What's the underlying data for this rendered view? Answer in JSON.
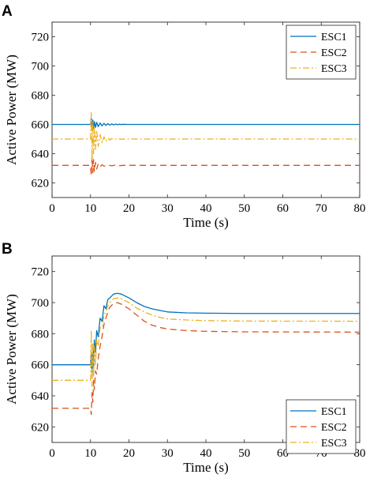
{
  "chart_data": [
    {
      "type": "line",
      "panel_label": "A",
      "xlabel": "Time (s)",
      "ylabel": "Active Power (MW)",
      "xlim": [
        0,
        80
      ],
      "ylim": [
        610,
        730
      ],
      "xticks": [
        0,
        10,
        20,
        30,
        40,
        50,
        60,
        70,
        80
      ],
      "yticks": [
        620,
        640,
        660,
        680,
        700,
        720
      ],
      "grid": false,
      "legend_position": "top-right",
      "series": [
        {
          "name": "ESC1",
          "color": "#0072BD",
          "dash": "solid",
          "points": [
            [
              0,
              660
            ],
            [
              10,
              660
            ],
            [
              10.2,
              664
            ],
            [
              10.4,
              656
            ],
            [
              10.6,
              663
            ],
            [
              10.8,
              657
            ],
            [
              11.0,
              662
            ],
            [
              11.3,
              658
            ],
            [
              11.6,
              661.5
            ],
            [
              12.0,
              658.5
            ],
            [
              12.5,
              661
            ],
            [
              13.0,
              659
            ],
            [
              13.5,
              660.8
            ],
            [
              14.0,
              659.3
            ],
            [
              14.5,
              660.6
            ],
            [
              15.0,
              659.5
            ],
            [
              15.5,
              660.4
            ],
            [
              16.0,
              659.7
            ],
            [
              16.5,
              660.3
            ],
            [
              17.0,
              659.8
            ],
            [
              17.5,
              660.2
            ],
            [
              18.0,
              659.9
            ],
            [
              18.5,
              660.1
            ],
            [
              19.5,
              660
            ],
            [
              80,
              660
            ]
          ]
        },
        {
          "name": "ESC2",
          "color": "#D95319",
          "dash": "8,5",
          "points": [
            [
              0,
              632
            ],
            [
              10,
              632
            ],
            [
              10.2,
              625
            ],
            [
              10.4,
              638
            ],
            [
              10.6,
              627
            ],
            [
              10.8,
              636
            ],
            [
              11.0,
              628
            ],
            [
              11.3,
              634
            ],
            [
              11.6,
              629.5
            ],
            [
              12.0,
              633
            ],
            [
              12.5,
              631
            ],
            [
              13.0,
              632.5
            ],
            [
              13.5,
              631.5
            ],
            [
              14.5,
              632.3
            ],
            [
              15.5,
              631.7
            ],
            [
              16.5,
              632.2
            ],
            [
              17.5,
              631.8
            ],
            [
              18.5,
              632
            ],
            [
              80,
              632
            ]
          ]
        },
        {
          "name": "ESC3",
          "color": "#EDB120",
          "dash": "8,3,2,3",
          "points": [
            [
              0,
              650
            ],
            [
              10,
              650
            ],
            [
              10.2,
              668
            ],
            [
              10.4,
              636
            ],
            [
              10.6,
              662
            ],
            [
              10.8,
              640
            ],
            [
              11.0,
              659
            ],
            [
              11.3,
              643
            ],
            [
              11.6,
              656
            ],
            [
              12.0,
              645
            ],
            [
              12.5,
              653
            ],
            [
              13.0,
              647.5
            ],
            [
              13.5,
              651.5
            ],
            [
              14.0,
              648.5
            ],
            [
              14.5,
              650.8
            ],
            [
              15.0,
              649.3
            ],
            [
              15.5,
              650.4
            ],
            [
              16.0,
              649.7
            ],
            [
              17.0,
              650.2
            ],
            [
              18.0,
              649.9
            ],
            [
              19.0,
              650
            ],
            [
              80,
              650
            ]
          ]
        }
      ]
    },
    {
      "type": "line",
      "panel_label": "B",
      "xlabel": "Time (s)",
      "ylabel": "Active Power (MW)",
      "xlim": [
        0,
        80
      ],
      "ylim": [
        610,
        730
      ],
      "xticks": [
        0,
        10,
        20,
        30,
        40,
        50,
        60,
        70,
        80
      ],
      "yticks": [
        620,
        640,
        660,
        680,
        700,
        720
      ],
      "grid": false,
      "legend_position": "bottom-right",
      "series": [
        {
          "name": "ESC1",
          "color": "#0072BD",
          "dash": "solid",
          "points": [
            [
              0,
              660
            ],
            [
              10,
              660
            ],
            [
              10.2,
              668
            ],
            [
              10.4,
              652
            ],
            [
              10.6,
              670
            ],
            [
              10.8,
              658
            ],
            [
              11,
              676
            ],
            [
              11.3,
              668
            ],
            [
              11.6,
              682
            ],
            [
              12,
              678
            ],
            [
              12.5,
              690
            ],
            [
              13,
              688
            ],
            [
              13.5,
              698
            ],
            [
              14,
              696
            ],
            [
              14.5,
              702
            ],
            [
              15,
              703
            ],
            [
              16,
              705.5
            ],
            [
              17,
              706
            ],
            [
              18,
              705.5
            ],
            [
              20,
              703
            ],
            [
              22,
              700
            ],
            [
              24,
              697.5
            ],
            [
              26,
              696
            ],
            [
              28,
              695
            ],
            [
              30,
              694
            ],
            [
              35,
              693.4
            ],
            [
              40,
              693.2
            ],
            [
              50,
              693
            ],
            [
              80,
              693
            ]
          ]
        },
        {
          "name": "ESC2",
          "color": "#D95319",
          "dash": "8,5",
          "points": [
            [
              0,
              632
            ],
            [
              10,
              632
            ],
            [
              10.2,
              628
            ],
            [
              10.4,
              642
            ],
            [
              10.6,
              636
            ],
            [
              10.8,
              650
            ],
            [
              11,
              644
            ],
            [
              11.3,
              656
            ],
            [
              11.6,
              654
            ],
            [
              12,
              664
            ],
            [
              12.5,
              672
            ],
            [
              13,
              678
            ],
            [
              13.5,
              686
            ],
            [
              14,
              690
            ],
            [
              14.5,
              694
            ],
            [
              15,
              697
            ],
            [
              16,
              699.5
            ],
            [
              17,
              700
            ],
            [
              18,
              699
            ],
            [
              20,
              696
            ],
            [
              22,
              692
            ],
            [
              24,
              688
            ],
            [
              26,
              685.5
            ],
            [
              28,
              684
            ],
            [
              30,
              683
            ],
            [
              35,
              682
            ],
            [
              40,
              681.5
            ],
            [
              50,
              681.2
            ],
            [
              80,
              681
            ]
          ]
        },
        {
          "name": "ESC3",
          "color": "#EDB120",
          "dash": "8,3,2,3",
          "points": [
            [
              0,
              650
            ],
            [
              10,
              650
            ],
            [
              10.2,
              682
            ],
            [
              10.4,
              646
            ],
            [
              10.6,
              674
            ],
            [
              10.8,
              652
            ],
            [
              11,
              672
            ],
            [
              11.3,
              660
            ],
            [
              11.6,
              676
            ],
            [
              12,
              672
            ],
            [
              12.5,
              684
            ],
            [
              13,
              684
            ],
            [
              13.5,
              692
            ],
            [
              14,
              694
            ],
            [
              14.5,
              698
            ],
            [
              15,
              700
            ],
            [
              16,
              702.5
            ],
            [
              17,
              703
            ],
            [
              18,
              702.5
            ],
            [
              20,
              700
            ],
            [
              22,
              696.5
            ],
            [
              24,
              694
            ],
            [
              26,
              692
            ],
            [
              28,
              690.5
            ],
            [
              30,
              689.5
            ],
            [
              35,
              688.8
            ],
            [
              40,
              688.4
            ],
            [
              50,
              688.1
            ],
            [
              80,
              688
            ]
          ]
        }
      ]
    }
  ]
}
